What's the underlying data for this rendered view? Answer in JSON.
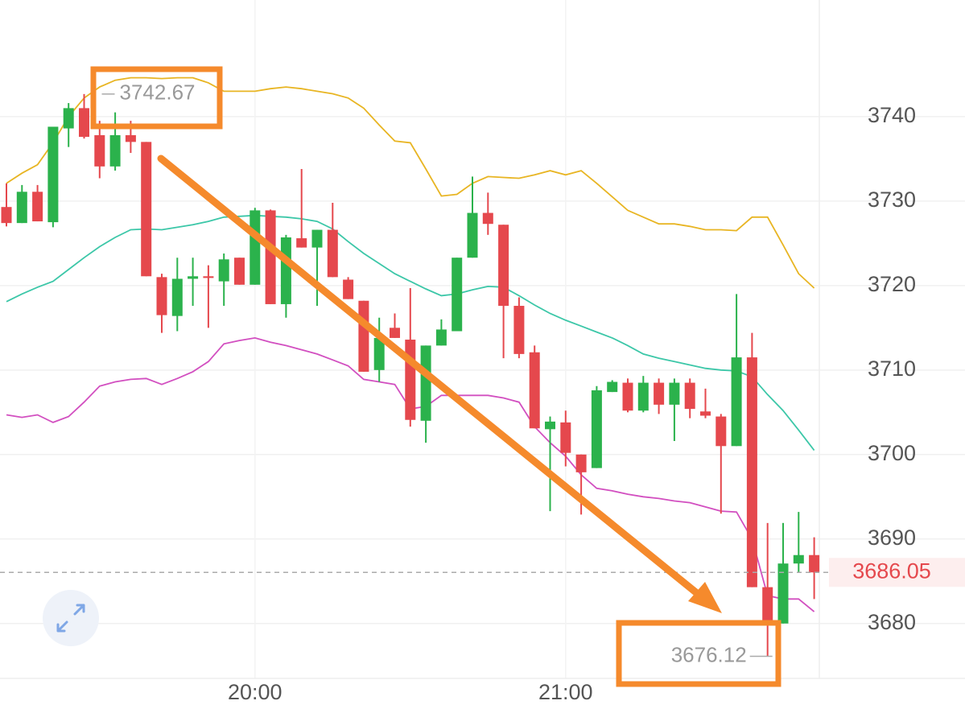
{
  "chart_data": {
    "type": "candlestick",
    "categories": [
      null,
      null,
      null,
      null,
      null,
      null,
      null,
      null,
      null,
      null,
      null,
      null,
      null,
      null,
      null,
      null,
      "20:00",
      null,
      null,
      null,
      null,
      null,
      null,
      null,
      null,
      null,
      null,
      null,
      null,
      null,
      null,
      null,
      null,
      null,
      null,
      null,
      "21:00",
      null,
      null,
      null,
      null,
      null,
      null,
      null,
      null,
      null,
      null,
      null,
      null,
      null,
      null,
      null,
      null
    ],
    "open": [
      3729.3,
      3727.4,
      3731.1,
      3727.5,
      3738.6,
      3741.0,
      3737.8,
      3734.1,
      3737.8,
      3737.0,
      3721.0,
      3716.4,
      3720.8,
      3721.1,
      3720.5,
      3723.3,
      3720.1,
      3728.9,
      3717.8,
      3725.6,
      3724.5,
      3726.6,
      3720.7,
      3718.2,
      3710.0,
      3715.0,
      3713.6,
      3704.0,
      3712.9,
      3714.6,
      3723.3,
      3728.6,
      3727.2,
      3717.6,
      3712.1,
      3703.0,
      3703.8,
      3700.0,
      3698.4,
      3707.4,
      3708.5,
      3705.2,
      3708.5,
      3705.9,
      3708.5,
      3705.1,
      3704.5,
      3701.0,
      3711.5,
      3684.3,
      3680.0,
      3687.1,
      3688.1
    ],
    "high": [
      3732.1,
      3731.9,
      3731.9,
      3738.8,
      3741.6,
      3742.67,
      3739.5,
      3740.5,
      3739.5,
      3737.0,
      3721.4,
      3723.3,
      3723.3,
      3722.4,
      3723.8,
      3723.3,
      3729.2,
      3729.0,
      3726.0,
      3733.8,
      3726.6,
      3729.8,
      3721.0,
      3718.2,
      3716.2,
      3716.7,
      3719.7,
      3712.9,
      3716.0,
      3723.3,
      3732.9,
      3731.0,
      3727.2,
      3718.6,
      3712.9,
      3704.5,
      3705.2,
      3700.0,
      3708.1,
      3708.8,
      3709.0,
      3709.3,
      3709.0,
      3709.0,
      3709.0,
      3707.8,
      3704.8,
      3719.0,
      3714.4,
      3691.9,
      3691.9,
      3693.2,
      3690.2
    ],
    "low": [
      3727.0,
      3727.4,
      3727.6,
      3726.9,
      3736.4,
      3737.4,
      3732.7,
      3733.6,
      3735.7,
      3721.1,
      3714.4,
      3714.6,
      3717.6,
      3715.0,
      3717.6,
      3720.1,
      3720.1,
      3717.8,
      3716.2,
      3724.5,
      3717.6,
      3721.0,
      3718.4,
      3709.8,
      3708.6,
      3713.8,
      3703.3,
      3701.4,
      3712.9,
      3714.6,
      3723.3,
      3726.0,
      3711.4,
      3711.4,
      3703.1,
      3693.3,
      3698.6,
      3692.9,
      3698.4,
      3707.4,
      3705.0,
      3705.0,
      3704.8,
      3701.6,
      3704.3,
      3704.3,
      3693.0,
      3701.0,
      3684.3,
      3676.12,
      3680.0,
      3686.0,
      3682.9
    ],
    "close": [
      3727.4,
      3731.1,
      3727.6,
      3738.8,
      3741.0,
      3737.6,
      3734.1,
      3737.8,
      3737.0,
      3721.1,
      3716.5,
      3720.8,
      3721.1,
      3720.9,
      3723.1,
      3720.1,
      3728.9,
      3717.8,
      3725.7,
      3724.5,
      3726.6,
      3721.0,
      3718.4,
      3709.8,
      3713.8,
      3713.8,
      3704.1,
      3712.9,
      3714.8,
      3723.3,
      3728.6,
      3727.3,
      3717.6,
      3711.9,
      3703.1,
      3703.9,
      3700.2,
      3697.9,
      3707.6,
      3708.6,
      3705.2,
      3708.5,
      3705.9,
      3708.5,
      3705.4,
      3704.6,
      3701.0,
      3711.5,
      3684.3,
      3680.0,
      3687.1,
      3688.1,
      3686.05
    ],
    "up_color": "#2bb24c",
    "down_color": "#e5484d",
    "overlays": [
      {
        "color": "#e8b523",
        "values": [
          3732.1,
          3733.3,
          3734.3,
          3736.9,
          3740.0,
          3742.2,
          3743.5,
          3744.3,
          3744.6,
          3744.6,
          3744.5,
          3744.6,
          3744.6,
          3744.0,
          3743.0,
          3743.0,
          3743.0,
          3743.3,
          3743.5,
          3743.3,
          3743.0,
          3742.7,
          3742.2,
          3741.0,
          3739.0,
          3737.1,
          3736.9,
          3733.8,
          3730.6,
          3730.8,
          3732.1,
          3732.9,
          3732.8,
          3732.7,
          3733.1,
          3733.6,
          3733.1,
          3733.6,
          3732.1,
          3730.5,
          3728.9,
          3728.1,
          3727.3,
          3727.3,
          3727.0,
          3726.6,
          3726.6,
          3726.5,
          3728.1,
          3728.1,
          3724.8,
          3721.4,
          3719.7
        ]
      },
      {
        "color": "#3cc7a8",
        "values": [
          3718.1,
          3719.0,
          3719.8,
          3720.5,
          3721.9,
          3723.3,
          3724.6,
          3725.7,
          3726.6,
          3726.7,
          3726.6,
          3726.9,
          3727.2,
          3727.6,
          3728.1,
          3728.2,
          3728.3,
          3728.2,
          3728.1,
          3727.9,
          3727.6,
          3726.7,
          3725.2,
          3723.8,
          3722.6,
          3721.4,
          3720.5,
          3719.6,
          3718.8,
          3719.0,
          3719.5,
          3719.9,
          3719.8,
          3718.8,
          3717.7,
          3716.7,
          3715.9,
          3715.2,
          3714.5,
          3713.8,
          3712.9,
          3711.9,
          3711.4,
          3711.0,
          3710.6,
          3710.2,
          3710.0,
          3709.9,
          3709.2,
          3707.1,
          3705.2,
          3702.9,
          3700.5
        ]
      },
      {
        "color": "#d24fc0",
        "values": [
          3704.7,
          3704.4,
          3704.7,
          3703.8,
          3704.5,
          3706.2,
          3708.1,
          3708.6,
          3708.9,
          3709.0,
          3708.3,
          3709.0,
          3709.8,
          3711.0,
          3713.1,
          3713.5,
          3713.8,
          3713.3,
          3712.9,
          3712.4,
          3711.9,
          3711.2,
          3710.5,
          3708.9,
          3708.6,
          3708.3,
          3705.4,
          3705.7,
          3707.0,
          3707.0,
          3707.0,
          3707.0,
          3706.7,
          3706.2,
          3703.3,
          3701.4,
          3699.8,
          3697.6,
          3696.0,
          3695.7,
          3695.3,
          3695.0,
          3694.8,
          3694.5,
          3694.3,
          3693.8,
          3693.3,
          3693.2,
          3690.0,
          3683.3,
          3682.9,
          3682.9,
          3681.4
        ]
      }
    ],
    "ylim": [
      3673.5,
      3753.8
    ],
    "yticks": [
      3680,
      3690,
      3700,
      3710,
      3720,
      3730,
      3740
    ],
    "grid": true,
    "annotations": {
      "high": 3742.67,
      "low": 3676.12
    },
    "last_price": 3686.05
  }
}
